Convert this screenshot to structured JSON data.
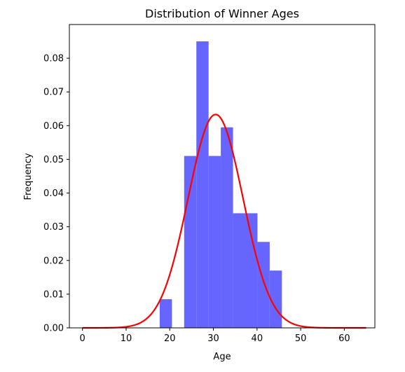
{
  "chart_data": {
    "type": "bar",
    "title": "Distribution of Winner Ages",
    "xlabel": "Age",
    "ylabel": "Frequency",
    "xlim": [
      -3,
      67
    ],
    "ylim": [
      0,
      0.09
    ],
    "xticks": [
      "0",
      "10",
      "20",
      "30",
      "40",
      "50",
      "60"
    ],
    "yticks": [
      "0.00",
      "0.01",
      "0.02",
      "0.03",
      "0.04",
      "0.05",
      "0.06",
      "0.07",
      "0.08"
    ],
    "grid": false,
    "histogram": {
      "bin_edges": [
        17.7,
        20.5,
        23.3,
        26.1,
        28.9,
        31.7,
        34.5,
        37.3,
        40.1,
        42.9,
        45.7
      ],
      "density": [
        0.0085,
        0.0,
        0.051,
        0.085,
        0.051,
        0.0595,
        0.034,
        0.034,
        0.0255,
        0.017
      ],
      "color": "#6666ff"
    },
    "curve": {
      "type": "normal-pdf",
      "mean": 30.5,
      "std": 6.3,
      "x_range": [
        0,
        65
      ],
      "color": "#ff0000"
    }
  }
}
